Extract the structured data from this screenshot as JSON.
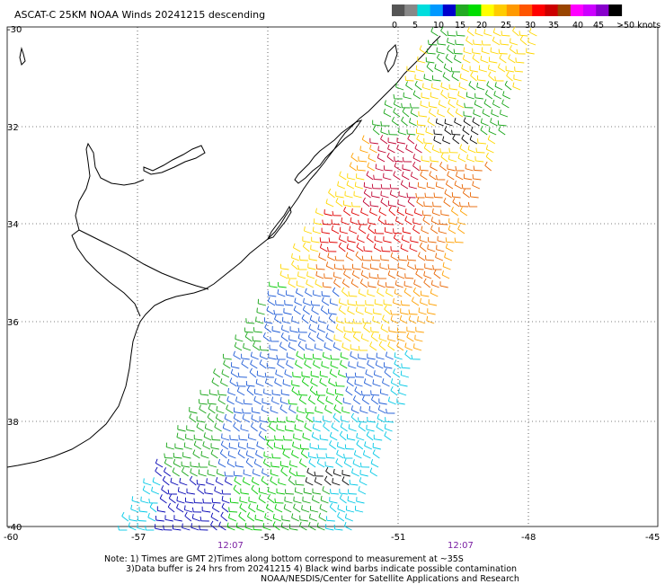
{
  "title": "ASCAT-C 25KM NOAA Winds 20241215 descending",
  "legend": {
    "colors": [
      "#555555",
      "#888888",
      "#00dddd",
      "#0099ff",
      "#0000cc",
      "#22aa22",
      "#00dd00",
      "#ffff00",
      "#ffcc00",
      "#ff9900",
      "#ff5500",
      "#ff0000",
      "#cc0000",
      "#994400",
      "#ff00ff",
      "#cc00ff",
      "#8800cc",
      "#000000"
    ],
    "tick_labels": [
      "0",
      "5",
      "10",
      "15",
      "20",
      "25",
      "30",
      "35",
      "40",
      "45",
      ">50 knots"
    ]
  },
  "lat_labels": [
    "-30",
    "32",
    "34",
    "36",
    "38",
    "-40"
  ],
  "lon_labels": [
    "-60",
    "-57",
    "-54",
    "-51",
    "-48",
    "-45"
  ],
  "time_labels": [
    "12:07",
    "12:07"
  ],
  "notes": {
    "line1": "Note: 1) Times are GMT 2)Times along bottom correspond to measurement at ~35S",
    "line2": "3)Data buffer is 24 hrs from 20241215 4) Black wind barbs indicate possible contamination",
    "line3": "NOAA/NESDIS/Center for Satellite Applications and Research"
  },
  "map_region": {
    "lat_range": [
      -40,
      -30
    ],
    "lon_range": [
      -60,
      -45
    ],
    "grid": true
  },
  "wind_colors": {
    "cyan": "#00c8e6",
    "blue": "#1e5bd6",
    "navy": "#0000b4",
    "green": "#16a416",
    "lgreen": "#00c800",
    "yellow": "#ffd700",
    "orange": "#ffa000",
    "dorange": "#e86400",
    "red": "#e00000",
    "dred": "#c00030",
    "brown": "#8b4513",
    "black": "#000000"
  },
  "coast_color": "#000000"
}
